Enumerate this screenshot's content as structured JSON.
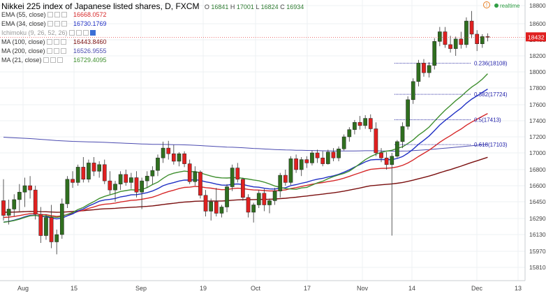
{
  "header": {
    "title": "Nikkei 225 index of Japanese listed shares, D, FXCM",
    "ohlc": [
      {
        "k": "O",
        "v": "16841"
      },
      {
        "k": "H",
        "v": "17001"
      },
      {
        "k": "L",
        "v": "16824"
      },
      {
        "k": "C",
        "v": "16934"
      }
    ],
    "realtime": "realtime"
  },
  "indicators": [
    {
      "label": "EMA (55, close)",
      "value": "16668.0572",
      "color": "#d62728"
    },
    {
      "label": "EMA (34, close)",
      "value": "16730.1769",
      "color": "#1f2fc4"
    },
    {
      "label": "Ichimoku (9, 26, 52, 26)",
      "value": "",
      "color": "#999999"
    },
    {
      "label": "MA (100, close)",
      "value": "16443.8460",
      "color": "#7a0f0f"
    },
    {
      "label": "MA (200, close)",
      "value": "16526.9555",
      "color": "#4b4bb0"
    },
    {
      "label": "MA (21, close)",
      "value": "16729.4095",
      "color": "#3f8f2f"
    }
  ],
  "chart_data": {
    "type": "candlestick",
    "last_price": "18432",
    "y_ticks": [
      "18800",
      "18600",
      "18400",
      "18200",
      "18000",
      "17800",
      "17600",
      "17400",
      "17200",
      "17000",
      "16800",
      "16600",
      "16450",
      "16290",
      "16130",
      "15970",
      "15810"
    ],
    "x_ticks": [
      "Aug",
      "15",
      "Sep",
      "19",
      "Oct",
      "17",
      "Nov",
      "14",
      "Dec",
      "13"
    ],
    "fib_levels": [
      {
        "label": "0.236(18108)",
        "value": 18108
      },
      {
        "label": "0.382(17724)",
        "value": 17724
      },
      {
        "label": "0.5(17413)",
        "value": 17413
      },
      {
        "label": "0.618(17103)",
        "value": 17103
      }
    ],
    "candles": [
      [
        16460,
        16680,
        16270,
        16320
      ],
      [
        16320,
        16470,
        16230,
        16380
      ],
      [
        16380,
        16520,
        16310,
        16470
      ],
      [
        16470,
        16620,
        16360,
        16540
      ],
      [
        16540,
        16700,
        16400,
        16600
      ],
      [
        16600,
        16720,
        16480,
        16560
      ],
      [
        16560,
        16600,
        16280,
        16330
      ],
      [
        16330,
        16400,
        16050,
        16120
      ],
      [
        16120,
        16330,
        16080,
        16300
      ],
      [
        16300,
        16420,
        16000,
        16060
      ],
      [
        16060,
        16180,
        15940,
        16130
      ],
      [
        16130,
        16480,
        16090,
        16430
      ],
      [
        16430,
        16720,
        16390,
        16680
      ],
      [
        16680,
        16780,
        16580,
        16640
      ],
      [
        16640,
        16860,
        16600,
        16830
      ],
      [
        16830,
        16950,
        16640,
        16680
      ],
      [
        16680,
        16920,
        16640,
        16880
      ],
      [
        16880,
        16950,
        16720,
        16780
      ],
      [
        16780,
        16900,
        16700,
        16860
      ],
      [
        16860,
        16920,
        16620,
        16660
      ],
      [
        16660,
        16780,
        16520,
        16560
      ],
      [
        16560,
        16660,
        16450,
        16620
      ],
      [
        16620,
        16780,
        16560,
        16740
      ],
      [
        16740,
        16800,
        16600,
        16640
      ],
      [
        16640,
        16760,
        16570,
        16700
      ],
      [
        16700,
        16780,
        16490,
        16540
      ],
      [
        16540,
        16700,
        16380,
        16660
      ],
      [
        16660,
        16780,
        16580,
        16720
      ],
      [
        16720,
        16840,
        16620,
        16790
      ],
      [
        16790,
        16980,
        16720,
        16940
      ],
      [
        16940,
        17140,
        16880,
        17060
      ],
      [
        17060,
        17150,
        16920,
        16990
      ],
      [
        16990,
        17100,
        16860,
        16900
      ],
      [
        16900,
        17010,
        16840,
        16990
      ],
      [
        16990,
        17020,
        16830,
        16870
      ],
      [
        16870,
        16920,
        16620,
        16650
      ],
      [
        16650,
        16840,
        16600,
        16770
      ],
      [
        16770,
        16790,
        16480,
        16510
      ],
      [
        16510,
        16560,
        16310,
        16360
      ],
      [
        16360,
        16480,
        16270,
        16450
      ],
      [
        16450,
        16580,
        16310,
        16340
      ],
      [
        16340,
        16420,
        16300,
        16400
      ],
      [
        16400,
        16620,
        16350,
        16590
      ],
      [
        16590,
        16860,
        16550,
        16820
      ],
      [
        16820,
        16880,
        16640,
        16680
      ],
      [
        16680,
        16700,
        16460,
        16490
      ],
      [
        16490,
        16520,
        16300,
        16350
      ],
      [
        16350,
        16440,
        16250,
        16420
      ],
      [
        16420,
        16560,
        16390,
        16530
      ],
      [
        16530,
        16570,
        16360,
        16420
      ],
      [
        16420,
        16480,
        16340,
        16460
      ],
      [
        16460,
        16580,
        16420,
        16550
      ],
      [
        16550,
        16760,
        16490,
        16730
      ],
      [
        16730,
        16800,
        16600,
        16640
      ],
      [
        16640,
        16960,
        16610,
        16930
      ],
      [
        16930,
        16980,
        16760,
        16800
      ],
      [
        16800,
        16950,
        16720,
        16920
      ],
      [
        16920,
        16960,
        16820,
        16880
      ],
      [
        16880,
        17030,
        16850,
        17000
      ],
      [
        17000,
        17040,
        16880,
        16940
      ],
      [
        16940,
        17020,
        16840,
        16870
      ],
      [
        16870,
        17040,
        16860,
        17010
      ],
      [
        17010,
        17060,
        16900,
        16940
      ],
      [
        16940,
        17080,
        16900,
        17050
      ],
      [
        17050,
        17230,
        17030,
        17200
      ],
      [
        17200,
        17320,
        17140,
        17290
      ],
      [
        17290,
        17410,
        17230,
        17380
      ],
      [
        17380,
        17460,
        17290,
        17340
      ],
      [
        17340,
        17470,
        17300,
        17430
      ],
      [
        17430,
        17480,
        17260,
        17300
      ],
      [
        17300,
        17380,
        16960,
        17000
      ],
      [
        17000,
        17060,
        16890,
        16940
      ],
      [
        16940,
        17010,
        16800,
        16860
      ],
      [
        16860,
        17000,
        16120,
        16960
      ],
      [
        16960,
        17160,
        16940,
        17140
      ],
      [
        17140,
        17380,
        17060,
        17330
      ],
      [
        17330,
        17700,
        17290,
        17660
      ],
      [
        17660,
        17920,
        17610,
        17880
      ],
      [
        17880,
        18150,
        17820,
        18110
      ],
      [
        18110,
        18160,
        17940,
        17990
      ],
      [
        17990,
        18120,
        17930,
        18080
      ],
      [
        18080,
        18420,
        18030,
        18380
      ],
      [
        18380,
        18560,
        18320,
        18500
      ],
      [
        18500,
        18560,
        18300,
        18340
      ],
      [
        18340,
        18450,
        18240,
        18290
      ],
      [
        18290,
        18440,
        18200,
        18410
      ],
      [
        18410,
        18500,
        18290,
        18340
      ],
      [
        18340,
        18670,
        18300,
        18630
      ],
      [
        18630,
        18740,
        18420,
        18470
      ],
      [
        18470,
        18520,
        18260,
        18350
      ],
      [
        18350,
        18470,
        18300,
        18440
      ],
      [
        18440,
        18480,
        18380,
        18432
      ]
    ]
  }
}
